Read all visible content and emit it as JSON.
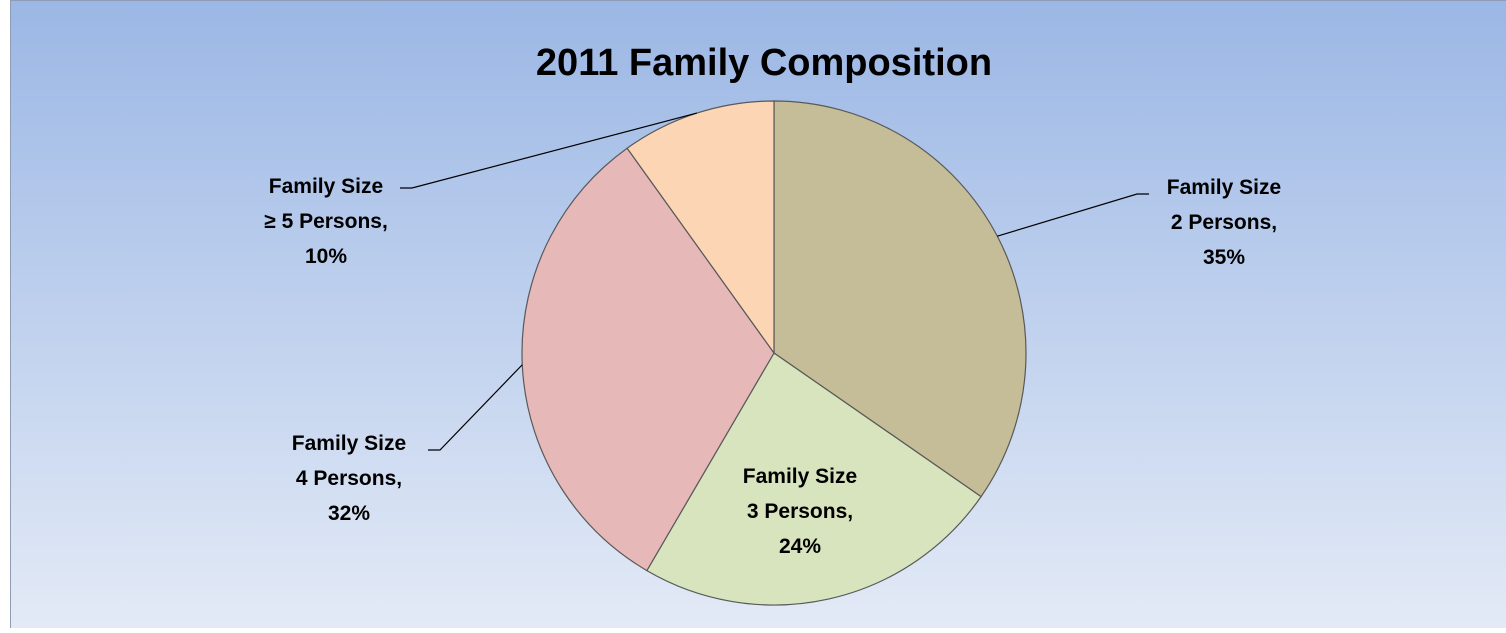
{
  "chart_data": {
    "type": "pie",
    "title": "2011 Family Composition",
    "start_angle_deg": 0,
    "direction": "clockwise",
    "legend": "none",
    "slices": [
      {
        "name": "Family Size 2 Persons",
        "value": 35,
        "color": "#C4BD97",
        "label_lines": [
          "Family Size",
          "2 Persons,",
          "35%"
        ]
      },
      {
        "name": "Family Size 3 Persons",
        "value": 24,
        "color": "#D7E4BD",
        "label_lines": [
          "Family Size",
          "3 Persons,",
          "24%"
        ]
      },
      {
        "name": "Family Size 4 Persons",
        "value": 32,
        "color": "#E6B9B8",
        "label_lines": [
          "Family Size",
          "4 Persons,",
          "32%"
        ]
      },
      {
        "name": "Family Size ≥ 5 Persons",
        "value": 10,
        "color": "#FCD5B5",
        "label_lines": [
          "Family Size",
          "≥ 5 Persons,",
          "10%"
        ]
      }
    ],
    "background": {
      "top_color": "#9BB7E5",
      "bottom_color": "#E3EAF6"
    }
  }
}
